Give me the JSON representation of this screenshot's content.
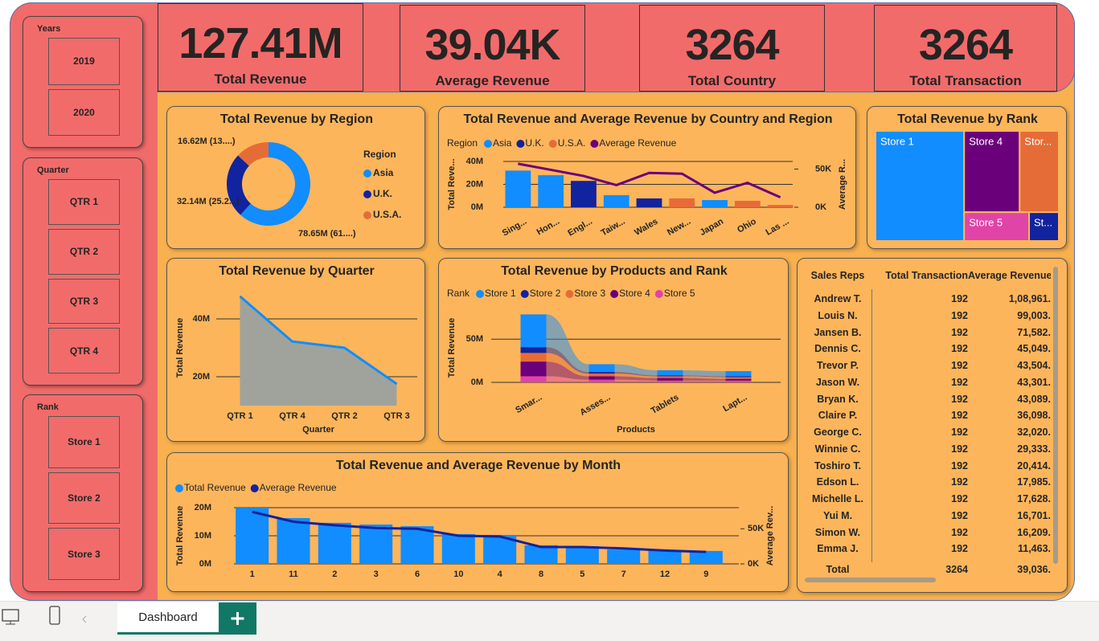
{
  "slicers": [
    {
      "title": "Years",
      "items": [
        "2019",
        "2020"
      ]
    },
    {
      "title": "Quarter",
      "items": [
        "QTR 1",
        "QTR 2",
        "QTR 3",
        "QTR 4"
      ]
    },
    {
      "title": "Rank",
      "items": [
        "Store 1",
        "Store 2",
        "Store 3"
      ]
    }
  ],
  "cards": [
    {
      "value": "127.41M",
      "label": "Total Revenue"
    },
    {
      "value": "39.04K",
      "label": "Average Revenue"
    },
    {
      "value": "3264",
      "label": "Total Country"
    },
    {
      "value": "3264",
      "label": "Total Transaction"
    }
  ],
  "chart_data": [
    {
      "type": "donut",
      "title": "Total Revenue by Region",
      "legend_title": "Region",
      "categories": [
        "Asia",
        "U.K.",
        "U.S.A."
      ],
      "values": [
        78.65,
        32.14,
        16.62
      ],
      "value_labels": [
        "78.65M (61....)",
        "32.14M (25.2...)",
        "16.62M (13....)"
      ],
      "colors": [
        "#118dff",
        "#12239e",
        "#e66c37"
      ]
    },
    {
      "type": "combo",
      "title": "Total Revenue and Average Revenue by Country and Region",
      "legend_title": "Region",
      "categories": [
        "Sing...",
        "Hon...",
        "Engl...",
        "Taiw...",
        "Wales",
        "New...",
        "Japan",
        "Ohio",
        "Las ..."
      ],
      "series": [
        {
          "name": "Asia",
          "color": "#118dff",
          "values": [
            32,
            28,
            null,
            10.5,
            null,
            null,
            6.3,
            null,
            null
          ]
        },
        {
          "name": "U.K.",
          "color": "#12239e",
          "values": [
            null,
            null,
            23,
            null,
            7.7,
            null,
            null,
            null,
            null
          ]
        },
        {
          "name": "U.S.A.",
          "color": "#e66c37",
          "values": [
            null,
            null,
            null,
            null,
            null,
            7.7,
            null,
            5.6,
            2
          ]
        },
        {
          "name": "Average Revenue",
          "color": "#6b007b",
          "axis": "y2",
          "values": [
            57,
            49,
            41,
            29,
            45,
            44,
            19,
            32,
            13
          ]
        }
      ],
      "ylim": [
        0,
        40
      ],
      "yticks": [
        {
          "value": 0,
          "label": "0M"
        },
        {
          "value": 20,
          "label": "20M"
        },
        {
          "value": 40,
          "label": "40M"
        }
      ],
      "y2lim": [
        0,
        60
      ],
      "y2ticks": [
        {
          "value": 0,
          "label": "0K"
        },
        {
          "value": 50,
          "label": "50K"
        }
      ],
      "y_label": "Total Reve...",
      "y2_label": "Average R...",
      "grid": true
    },
    {
      "type": "treemap",
      "title": "Total Revenue by Rank",
      "categories": [
        "Store 1",
        "Store 4",
        "Stor...",
        "Store 5",
        "St..."
      ],
      "values": [
        61.6,
        28.5,
        20.1,
        11.8,
        5.4
      ],
      "colors": [
        "#118dff",
        "#6b007b",
        "#e66c37",
        "#e044a7",
        "#12239e"
      ]
    },
    {
      "type": "area",
      "title": "Total Revenue by Quarter",
      "categories": [
        "QTR 1",
        "QTR 4",
        "QTR 2",
        "QTR 3"
      ],
      "values": [
        47.8,
        32.2,
        30,
        17.5
      ],
      "color": "#118dff",
      "ylim": [
        10,
        50
      ],
      "yticks": [
        {
          "value": 20,
          "label": "20M"
        },
        {
          "value": 40,
          "label": "40M"
        }
      ],
      "x_label": "Quarter",
      "y_label": "Total Revenue",
      "grid": true
    },
    {
      "type": "ribbon",
      "title": "Total Revenue by Products and Rank",
      "legend_title": "Rank",
      "categories": [
        "Smar...",
        "Asses...",
        "Tablets",
        "Lapt..."
      ],
      "series": [
        {
          "name": "Store 1",
          "color": "#118dff",
          "values": [
            38,
            9,
            6,
            6
          ]
        },
        {
          "name": "Store 2",
          "color": "#12239e",
          "values": [
            6.7,
            2,
            1,
            1
          ]
        },
        {
          "name": "Store 3",
          "color": "#e66c37",
          "values": [
            10,
            3,
            2,
            2
          ]
        },
        {
          "name": "Store 4",
          "color": "#6b007b",
          "values": [
            17,
            4,
            3,
            2
          ]
        },
        {
          "name": "Store 5",
          "color": "#e044a7",
          "values": [
            7,
            3,
            2,
            2
          ]
        }
      ],
      "ylim": [
        0,
        80
      ],
      "yticks": [
        {
          "value": 0,
          "label": "0M"
        },
        {
          "value": 50,
          "label": "50M"
        }
      ],
      "x_label": "Products",
      "y_label": "Total Revenue",
      "grid": true
    },
    {
      "type": "combo",
      "title": "Total Revenue and Average Revenue by Month",
      "categories": [
        "1",
        "11",
        "2",
        "3",
        "6",
        "10",
        "4",
        "8",
        "5",
        "7",
        "12",
        "9"
      ],
      "series": [
        {
          "name": "Total Revenue",
          "color": "#118dff",
          "values": [
            20,
            16.3,
            14.6,
            14,
            13.4,
            10.6,
            10.3,
            6.6,
            6.3,
            5.1,
            4.9,
            4.6
          ]
        },
        {
          "name": "Average Revenue",
          "color": "#12239e",
          "axis": "y2",
          "values": [
            74,
            60,
            55,
            51,
            50,
            40,
            39,
            24,
            24,
            22,
            19,
            17
          ]
        }
      ],
      "ylim": [
        0,
        20
      ],
      "yticks": [
        {
          "value": 0,
          "label": "0M"
        },
        {
          "value": 10,
          "label": "10M"
        },
        {
          "value": 20,
          "label": "20M"
        }
      ],
      "y2lim": [
        0,
        80
      ],
      "y2ticks": [
        {
          "value": 0,
          "label": "0K"
        },
        {
          "value": 50,
          "label": "50K"
        }
      ],
      "y_label": "Total Revenue",
      "y2_label": "Average Rev...",
      "grid": true
    }
  ],
  "table": {
    "columns": [
      "Sales Reps",
      "Total Transaction",
      "Average Revenue"
    ],
    "rows": [
      [
        "Andrew T.",
        "192",
        "1,08,961."
      ],
      [
        "Louis N.",
        "192",
        "99,003."
      ],
      [
        "Jansen B.",
        "192",
        "71,582."
      ],
      [
        "Dennis C.",
        "192",
        "45,049."
      ],
      [
        "Trevor P.",
        "192",
        "43,504."
      ],
      [
        "Jason W.",
        "192",
        "43,301."
      ],
      [
        "Bryan K.",
        "192",
        "43,089."
      ],
      [
        "Claire P.",
        "192",
        "36,098."
      ],
      [
        "George C.",
        "192",
        "32,020."
      ],
      [
        "Winnie C.",
        "192",
        "29,333."
      ],
      [
        "Toshiro T.",
        "192",
        "20,414."
      ],
      [
        "Edson L.",
        "192",
        "17,985."
      ],
      [
        "Michelle L.",
        "192",
        "17,628."
      ],
      [
        "Yui M.",
        "192",
        "16,701."
      ],
      [
        "Simon W.",
        "192",
        "16,209."
      ],
      [
        "Emma J.",
        "192",
        "11,463."
      ]
    ],
    "total": [
      "Total",
      "3264",
      "39,036."
    ]
  },
  "tabs": [
    "Dashboard"
  ]
}
